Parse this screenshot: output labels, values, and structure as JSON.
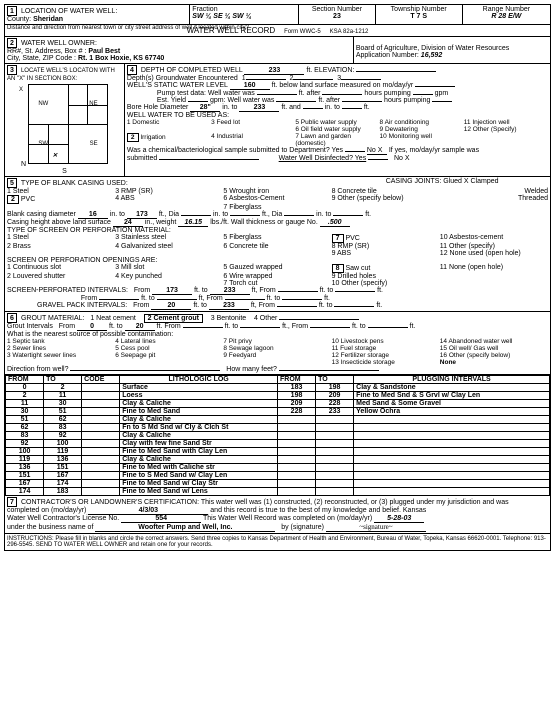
{
  "form_header": {
    "title": "WATER WELL RECORD",
    "form_no": "Form WWC-5",
    "ksa": "KSA 82a-1212"
  },
  "location": {
    "label": "LOCATION OF WATER WELL:",
    "county_label": "County:",
    "county": "Sheridan",
    "fraction_label": "Fraction",
    "fraction": "SW ¼  SE ¼  SW ¼",
    "section_label": "Section Number",
    "section": "23",
    "township_label": "Township Number",
    "township": "T     7     S",
    "range_label": "Range Number",
    "range": "R     28     E/W",
    "distance_label": "Distance and direction from nearest town or city street address of well if located within city?"
  },
  "owner": {
    "label": "WATER WELL OWNER:",
    "addr_label": "RR#, St. Address, Box # :",
    "name": "Paul Best",
    "city_label": "City, State, ZIP Code :",
    "addr2": "Rt. 1 Box    Hoxie, KS 67740",
    "board": "Board of Agriculture, Division of Water Resources",
    "appnum_label": "Application Number:",
    "appnum": "16,592"
  },
  "section3": {
    "label": "LOCATE WELL'S LOCATON WITH AN \"X\" IN SECTION BOX:",
    "nw": "NW",
    "ne": "NE",
    "sw": "SW",
    "se": "SE",
    "n": "N",
    "s": "S",
    "e": "E",
    "w": "W",
    "x": "X"
  },
  "section4": {
    "depth_label": "DEPTH OF COMPLETED WELL",
    "depth": "233",
    "depth_unit": "ft. ELEVATION:",
    "gw_label": "Depth(s) Groundwater Encountered",
    "gw1": "1",
    "gw2": "2",
    "gw3": "3",
    "swl_label": "WELL'S STATIC WATER LEVEL",
    "swl": "160",
    "swl_unit": "ft. below land surface measured on mo/day/yr",
    "pump_label": "Pump test data:  Well water was",
    "pump_after": "ft. after",
    "pump_hours": "hours pumping",
    "gpm": "gpm",
    "est_label": "Est. Yield",
    "est_gpm": "gpm:  Well water was",
    "est_after": "ft. after",
    "est_hours": "hours pumping",
    "bh_label": "Bore Hole Diameter",
    "bh_dia": "28\"",
    "bh_to": "in. to",
    "bh_to_val": "233",
    "bh_ft": "ft. and",
    "bh_in": "in. to",
    "bh_end": "ft.",
    "use_label": "WELL WATER TO BE USED AS:",
    "uses": [
      "1   Domestic",
      "3   Feed lot",
      "5   Public water supply",
      "8   Air conditioning",
      "11   Injection well",
      "",
      "",
      "6   Oil field water supply",
      "9   Dewatering",
      "12   Other (Specify)",
      "[2] Irrigation",
      "4   Industrial",
      "7   Lawn and garden (domestic)",
      "10   Monitoring well",
      ""
    ],
    "chem_label": "Was a chemical/bacteriological sample submitted to Department?  Yes",
    "chem_no": "No  X",
    "chem_after": "If yes, mo/day/yr sample was",
    "submitted": "submitted",
    "disinfected": "Water Well Disinfected?  Yes",
    "dis_no": "No  X"
  },
  "section5": {
    "label": "TYPE OF BLANK CASING USED:",
    "c1": "1   Steel",
    "c2": "3   RMP (SR)",
    "c3": "5   Wrought iron",
    "c4": "8   Concrete tile",
    "c5": "[2] PVC",
    "c6": "4   ABS",
    "c7": "7   Fiberglass",
    "c8": "6   Asbestos-Cement",
    "c9": "9   Other (specify below)",
    "joints_label": "CASING JOINTS:  Glued  X     Clamped",
    "welded": "Welded",
    "threaded": "Threaded",
    "dia_label": "Blank casing diameter",
    "dia": "16",
    "dia_to": "173",
    "height_label": "Casing height above land surface",
    "height": "24",
    "weight_label": "in., weight",
    "weight": "16.15",
    "lbsft": "lbs./ft.  Wall thickness or gauge No.",
    "gauge": ".500",
    "screen_label": "TYPE OF SCREEN OR PERFORATION MATERIAL:",
    "s1": "1   Steel",
    "s2": "3   Stainless steel",
    "s3": "5   Fiberglass",
    "sbox7": "[7] PVC",
    "s4": "10   Asbestos-cement",
    "s5": "2   Brass",
    "s6": "4   Galvanized steel",
    "s7": "6   Concrete tile",
    "s8": "8   RMP (SR)",
    "s9": "11   Other (specify)",
    "s10": "9   ABS",
    "s11": "12   None used (open hole)",
    "open_label": "SCREEN OR PERFORATION OPENINGS ARE:",
    "o1": "1   Continuous slot",
    "o2": "3   Mill slot",
    "o3": "5   Gauzed wrapped",
    "obox8": "[8] Saw cut",
    "o4": "11   None (open hole)",
    "o5": "2   Louvered shutter",
    "o6": "4   Key punched",
    "o7": "7   Torch cut",
    "o8": "6   Wire wrapped",
    "o9": "9   Drilled holes",
    "o10": "10   Other (specify)",
    "sp_label": "SCREEN-PERFORATED INTERVALS:",
    "sp_from": "From",
    "sp_f1": "173",
    "sp_to": "ft. to",
    "sp_t1": "233",
    "sp_ft": "ft,   From",
    "sp_toft": "ft. to",
    "sp_end": "ft.",
    "gp_label": "GRAVEL PACK INTERVALS:",
    "gp_f1": "20",
    "gp_t1": "233"
  },
  "section6": {
    "label": "GROUT MATERIAL:",
    "g1": "1  Neat cement",
    "gbox2": "[2  Cement grout]",
    "g3": "3  Bentonite",
    "g4": "4  Other",
    "gi_label": "Grout Intervals",
    "gi_from": "From",
    "gi_f1": "0",
    "gi_to": "ft. to",
    "gi_t1": "20",
    "gi_ft": "ft.  From",
    "contam_label": "What is the nearest source of possible contamination:",
    "c": [
      "1   Septic tank",
      "4   Lateral lines",
      "7   Pit privy",
      "10   Livestock pens",
      "14   Abandoned water well",
      "2   Sewer lines",
      "5   Cess pool",
      "8   Sewage lagoon",
      "12   Fertilizer storage",
      "15   Oil well/ Gas well",
      "3   Watertight sewer lines",
      "6   Seepage pit",
      "9   Feedyard",
      "11   Fuel storage",
      "16   Other (specify below)",
      "",
      "",
      "",
      "13   Insecticide storage",
      "None"
    ],
    "dir_label": "Direction from well?",
    "feet_label": "How many feet?"
  },
  "log_headers": {
    "from": "FROM",
    "to": "TO",
    "code": "CODE",
    "litho": "LITHOLOGIC LOG",
    "from2": "FROM",
    "to2": "TO",
    "plug": "PLUGGING INTERVALS"
  },
  "log_rows": [
    {
      "f": "0",
      "t": "2",
      "l": "Surface",
      "f2": "183",
      "t2": "198",
      "p": "Clay & Sandstone"
    },
    {
      "f": "2",
      "t": "11",
      "l": "Loess",
      "f2": "198",
      "t2": "209",
      "p": "Fine to Med Snd & S Grvl w/ Clay  Len"
    },
    {
      "f": "11",
      "t": "30",
      "l": "Clay & Caliche",
      "f2": "209",
      "t2": "228",
      "p": "Med Sand & Some Gravel"
    },
    {
      "f": "30",
      "t": "51",
      "l": "Fine to Med Sand",
      "f2": "228",
      "t2": "233",
      "p": "Yellow Ochra"
    },
    {
      "f": "51",
      "t": "62",
      "l": "Clay & Caliche",
      "f2": "",
      "t2": "",
      "p": ""
    },
    {
      "f": "62",
      "t": "83",
      "l": "Fn to S Md Snd w/ Cly & Clch St",
      "f2": "",
      "t2": "",
      "p": ""
    },
    {
      "f": "83",
      "t": "92",
      "l": "Clay & Caliche",
      "f2": "",
      "t2": "",
      "p": ""
    },
    {
      "f": "92",
      "t": "100",
      "l": "Clay with few fine Sand Str",
      "f2": "",
      "t2": "",
      "p": ""
    },
    {
      "f": "100",
      "t": "119",
      "l": "Fine to Med Sand with Clay Len",
      "f2": "",
      "t2": "",
      "p": ""
    },
    {
      "f": "119",
      "t": "136",
      "l": "Clay & Caliche",
      "f2": "",
      "t2": "",
      "p": ""
    },
    {
      "f": "136",
      "t": "151",
      "l": "Fine to Med with Caliche str",
      "f2": "",
      "t2": "",
      "p": ""
    },
    {
      "f": "151",
      "t": "167",
      "l": "Fine to S Med Sand w/ Clay Len",
      "f2": "",
      "t2": "",
      "p": ""
    },
    {
      "f": "167",
      "t": "174",
      "l": "Fine to Med Sand w/ Clay Str",
      "f2": "",
      "t2": "",
      "p": ""
    },
    {
      "f": "174",
      "t": "183",
      "l": "Fine to Med Sand w/ Lens",
      "f2": "",
      "t2": "",
      "p": ""
    }
  ],
  "section7": {
    "label": "CONTRACTOR'S OR LANDOWNER'S CERTIFICATION:   This water well was (1) constructed, (2) reconstructed, or (3) plugged under my jurisdiction and was",
    "completed_label": "completed on (mo/day/yr)",
    "completed": "4/3/03",
    "record_label": "and this record is true to the best of my knowledge and belief.  Kansas",
    "lic_label": "Water Well Contractor's License No.",
    "lic": "554",
    "wwr_label": "This Water Well Record was completed on (mo/day/yr)",
    "wwr_date": "5-28-03",
    "business_label": "under the business name of",
    "business": "Woofter Pump and Well, Inc.",
    "by_sig": "by (signature)"
  },
  "footer": "INSTRUCTIONS:   Please fill in blanks and circle the correct answers.  Send three copies to Kansas Department of Health and Environment, Bureau of Water, Topeka, Kansas 66620-0001.  Telephone:  913-296-5545.  SEND TO WATER WELL OWNER and retain one for your records."
}
